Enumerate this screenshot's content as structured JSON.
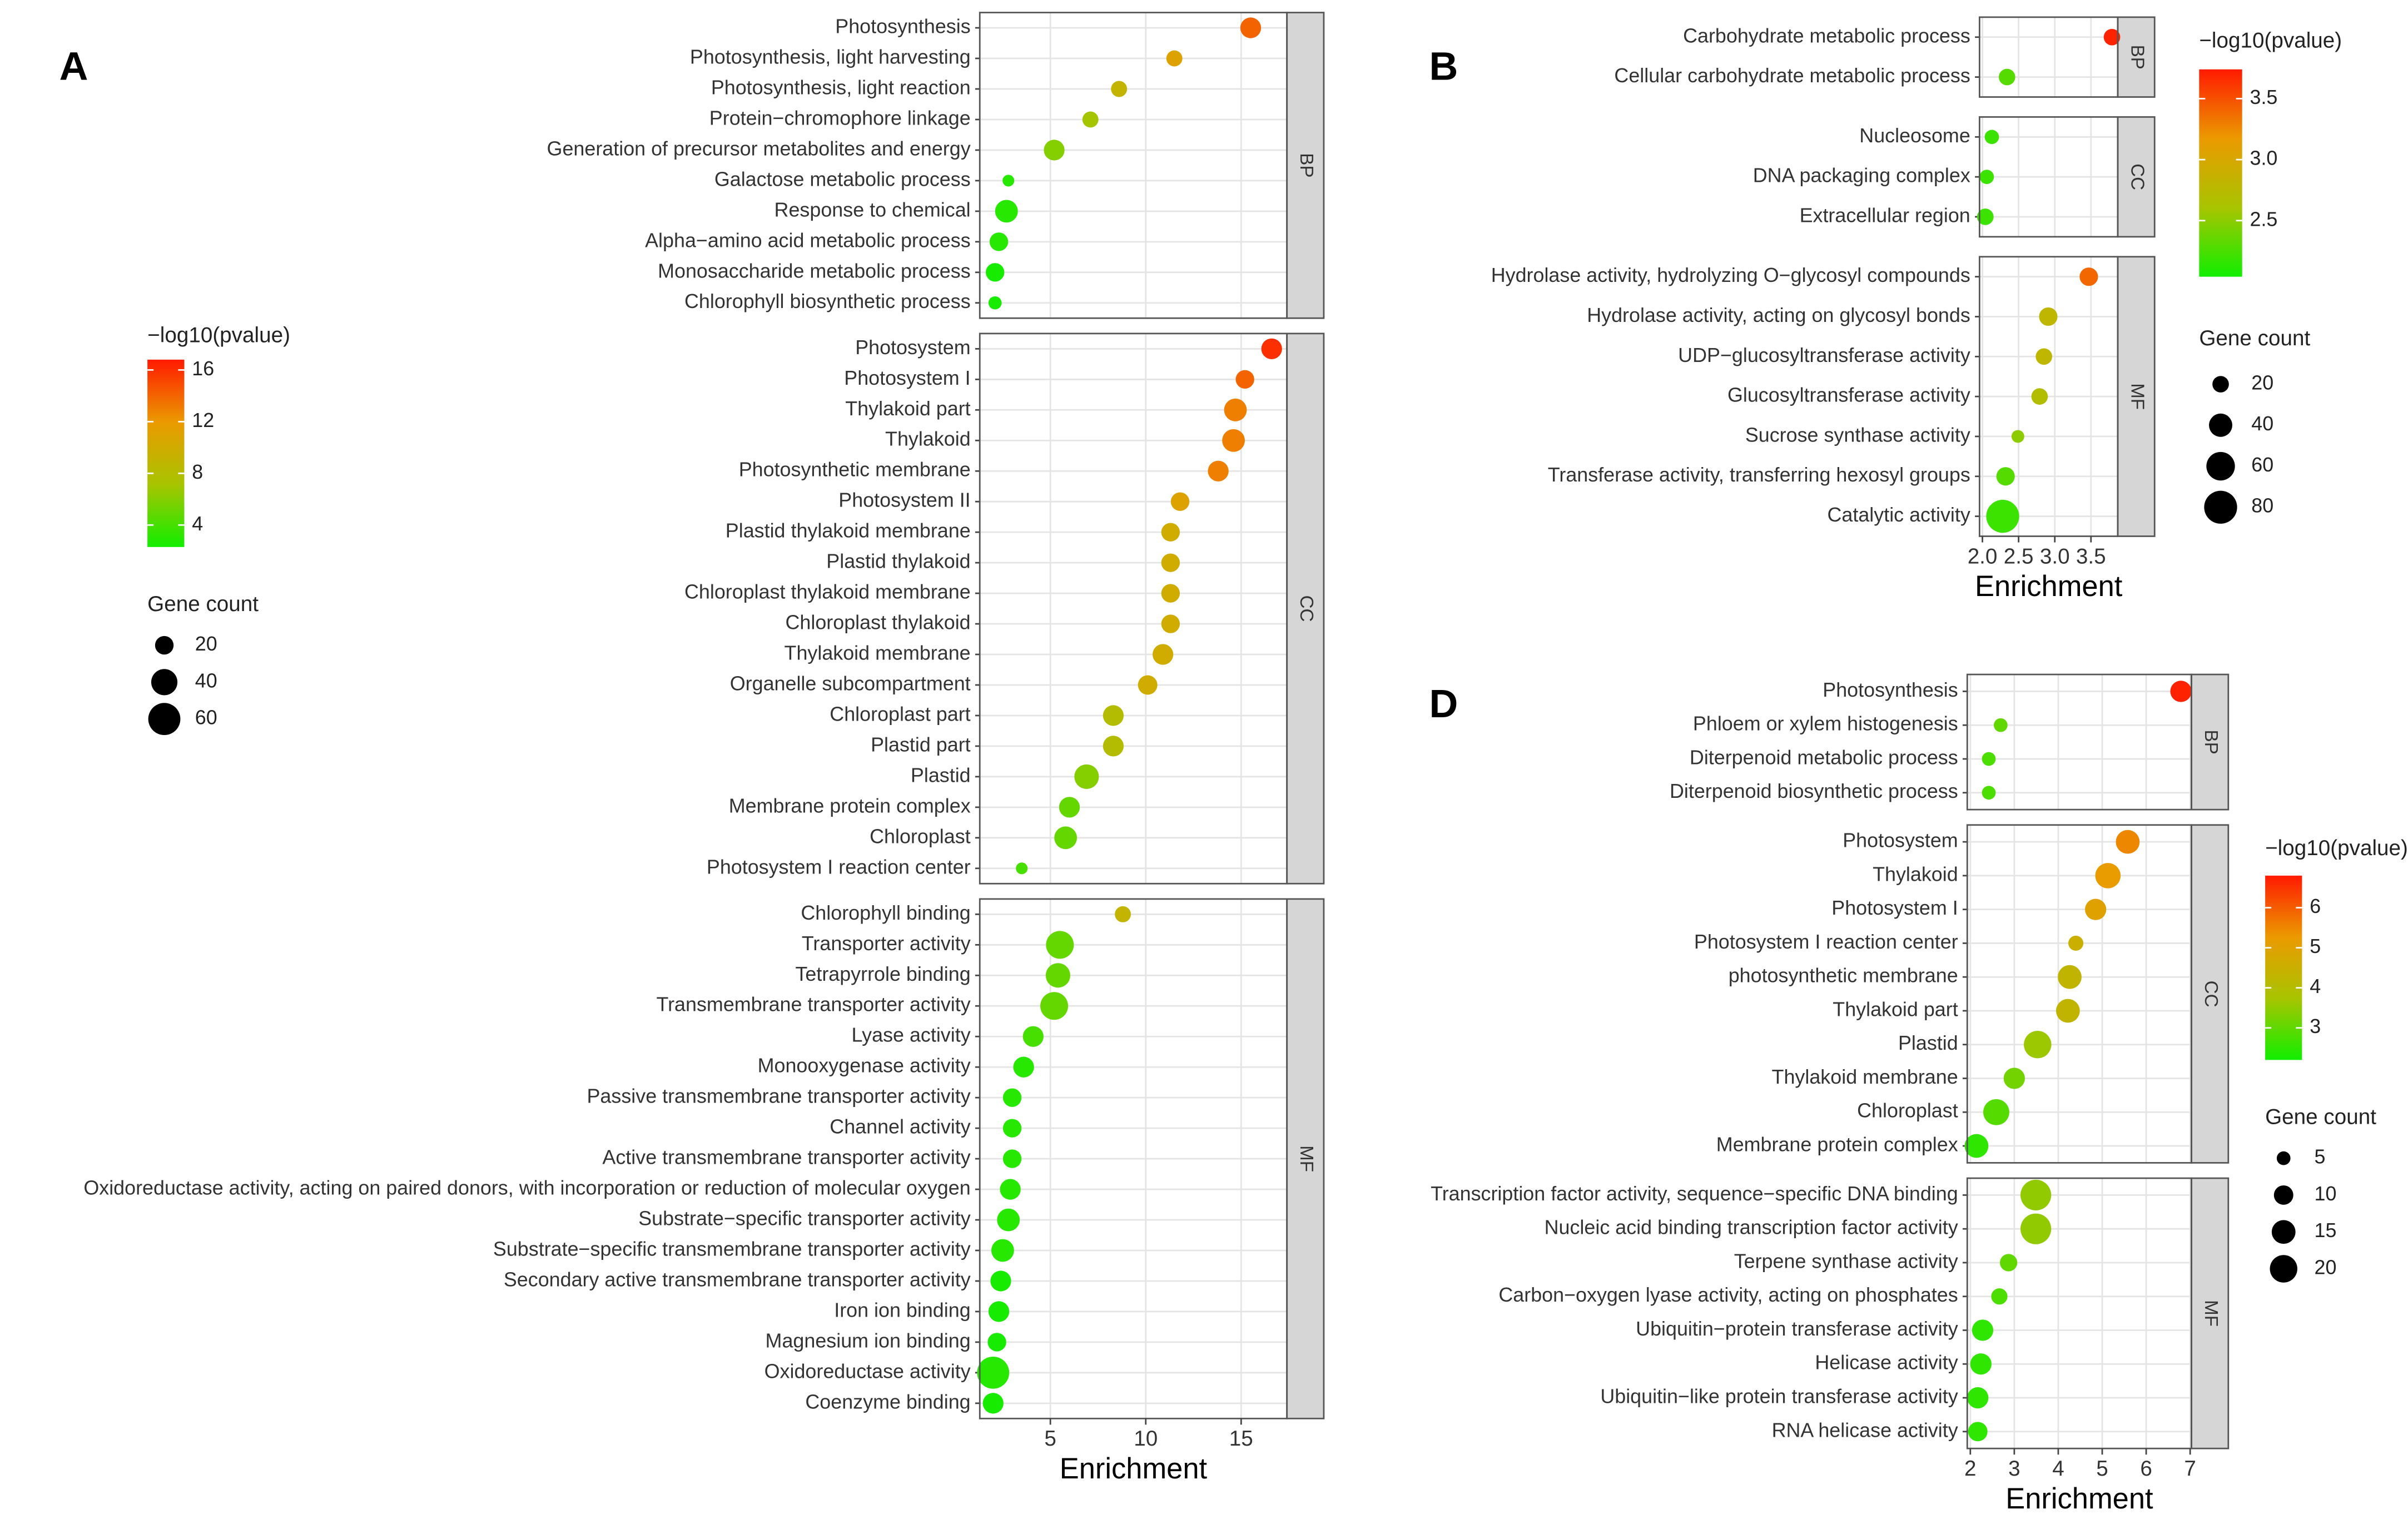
{
  "chart_data": [
    {
      "type": "dot",
      "panel": "A",
      "xlabel": "Enrichment",
      "xlim": [
        1.3,
        17.4
      ],
      "xticks": [
        5,
        10,
        15
      ],
      "color_title": "−log10(pvalue)",
      "clim": [
        2.3,
        16.8
      ],
      "cticks": [
        4,
        8,
        12,
        16
      ],
      "colorscale": [
        "#11ee00",
        "#a8c400",
        "#eb9a00",
        "#ff1a00"
      ],
      "size_title": "Gene count",
      "size_ticks": [
        20,
        40,
        60
      ],
      "facets": [
        {
          "name": "BP",
          "categories": [
            "Photosynthesis",
            "Photosynthesis, light harvesting",
            "Photosynthesis, light reaction",
            "Protein−chromophore linkage",
            "Generation of precursor metabolites and energy",
            "Galactose metabolic process",
            "Response to chemical",
            "Alpha−amino acid metabolic process",
            "Monosaccharide metabolic process",
            "Chlorophyll biosynthetic process"
          ],
          "values": [
            15.5,
            11.5,
            8.6,
            7.1,
            5.2,
            2.8,
            2.7,
            2.3,
            2.1,
            2.1
          ],
          "pvalues": [
            14,
            11,
            9,
            7,
            6,
            3,
            3,
            3,
            2.5,
            2.5
          ],
          "counts": [
            25,
            15,
            15,
            15,
            25,
            8,
            30,
            20,
            20,
            10
          ]
        },
        {
          "name": "CC",
          "categories": [
            "Photosystem",
            "Photosystem I",
            "Thylakoid part",
            "Thylakoid",
            "Photosynthetic membrane",
            "Photosystem II",
            "Plastid thylakoid membrane",
            "Plastid thylakoid",
            "Chloroplast thylakoid membrane",
            "Chloroplast thylakoid",
            "Thylakoid membrane",
            "Organelle subcompartment",
            "Chloroplast part",
            "Plastid part",
            "Plastid",
            "Membrane protein complex",
            "Chloroplast",
            "Photosystem I reaction center"
          ],
          "values": [
            16.6,
            15.2,
            14.7,
            14.6,
            13.8,
            11.8,
            11.3,
            11.3,
            11.3,
            11.3,
            10.9,
            10.1,
            8.3,
            8.3,
            6.9,
            6.0,
            5.8,
            3.5
          ],
          "pvalues": [
            16,
            14,
            13,
            13,
            13,
            11,
            10,
            10,
            10,
            10,
            10,
            10,
            8,
            8,
            6,
            5,
            5,
            4
          ],
          "counts": [
            25,
            20,
            30,
            30,
            25,
            20,
            20,
            20,
            20,
            20,
            25,
            22,
            25,
            25,
            35,
            25,
            30,
            8
          ]
        },
        {
          "name": "MF",
          "categories": [
            "Chlorophyll binding",
            "Transporter activity",
            "Tetrapyrrole binding",
            "Transmembrane transporter activity",
            "Lyase activity",
            "Monooxygenase activity",
            "Passive transmembrane transporter activity",
            "Channel activity",
            "Active transmembrane transporter activity",
            "Oxidoreductase activity, acting on paired donors, with incorporation or reduction of molecular oxygen",
            "Substrate−specific transporter activity",
            "Substrate−specific transmembrane transporter activity",
            "Secondary active transmembrane transporter activity",
            "Iron ion binding",
            "Magnesium ion binding",
            "Oxidoreductase activity",
            "Coenzyme binding"
          ],
          "values": [
            8.8,
            5.5,
            5.4,
            5.2,
            4.1,
            3.6,
            3.0,
            3.0,
            3.0,
            2.9,
            2.8,
            2.5,
            2.4,
            2.3,
            2.2,
            2.0,
            2.0
          ],
          "pvalues": [
            9,
            5,
            5,
            5,
            4,
            3,
            3,
            3,
            3,
            3,
            3,
            3,
            2.5,
            2.5,
            2.5,
            3,
            2.5
          ],
          "counts": [
            15,
            45,
            35,
            45,
            25,
            25,
            20,
            20,
            20,
            25,
            30,
            30,
            25,
            25,
            20,
            60,
            25
          ]
        }
      ]
    },
    {
      "type": "dot",
      "panel": "B",
      "xlabel": "Enrichment",
      "xlim": [
        1.96,
        3.87
      ],
      "xticks": [
        {
          "value": 2,
          "label": "2.0"
        },
        2.5,
        {
          "value": 3,
          "label": "3.0"
        },
        3.5
      ],
      "color_title": "−log10(pvalue)",
      "clim": [
        2.04,
        3.74
      ],
      "cticks": [
        2.5,
        {
          "value": 3,
          "label": "3.0"
        },
        3.5
      ],
      "colorscale": [
        "#11ee00",
        "#a8c400",
        "#eb9a00",
        "#ff1a00"
      ],
      "size_title": "Gene count",
      "size_ticks": [
        20,
        40,
        60,
        80
      ],
      "facets": [
        {
          "name": "BP",
          "categories": [
            "Carbohydrate metabolic process",
            "Cellular carbohydrate metabolic process"
          ],
          "values": [
            3.79,
            2.34
          ],
          "pvalues": [
            3.7,
            2.3
          ],
          "counts": [
            20,
            20
          ]
        },
        {
          "name": "CC",
          "categories": [
            "Nucleosome",
            "DNA packaging complex",
            "Extracellular region"
          ],
          "values": [
            2.13,
            2.06,
            2.04
          ],
          "pvalues": [
            2.2,
            2.2,
            2.2
          ],
          "counts": [
            15,
            15,
            20
          ]
        },
        {
          "name": "MF",
          "categories": [
            "Hydrolase activity, hydrolyzing O−glycosyl compounds",
            "Hydrolase activity, acting on glycosyl bonds",
            "UDP−glucosyltransferase activity",
            "Glucosyltransferase activity",
            "Sucrose synthase activity",
            "Transferase activity, transferring hexosyl groups",
            "Catalytic activity"
          ],
          "values": [
            3.47,
            2.91,
            2.85,
            2.79,
            2.49,
            2.32,
            2.28
          ],
          "pvalues": [
            3.4,
            2.8,
            2.8,
            2.7,
            2.5,
            2.3,
            2.2
          ],
          "counts": [
            25,
            25,
            20,
            20,
            12,
            25,
            80
          ]
        }
      ]
    },
    {
      "type": "dot",
      "panel": "D",
      "xlabel": "Enrichment",
      "xlim": [
        1.93,
        7.03
      ],
      "xticks": [
        2,
        3,
        4,
        5,
        6,
        7
      ],
      "color_title": "−log10(pvalue)",
      "clim": [
        2.2,
        6.8
      ],
      "cticks": [
        3,
        4,
        5,
        6
      ],
      "colorscale": [
        "#11ee00",
        "#a8c400",
        "#eb9a00",
        "#ff1a00"
      ],
      "size_title": "Gene count",
      "size_ticks": [
        5,
        10,
        15,
        20
      ],
      "facets": [
        {
          "name": "BP",
          "categories": [
            "Photosynthesis",
            "Phloem or xylem histogenesis",
            "Diterpenoid metabolic process",
            "Diterpenoid biosynthetic process"
          ],
          "values": [
            6.79,
            2.69,
            2.42,
            2.42
          ],
          "pvalues": [
            6.7,
            3,
            2.8,
            2.8
          ],
          "counts": [
            12,
            5,
            5,
            5
          ]
        },
        {
          "name": "CC",
          "categories": [
            "Photosystem",
            "Thylakoid",
            "Photosystem I",
            "Photosystem I reaction center",
            "photosynthetic membrane",
            "Thylakoid part",
            "Plastid",
            "Thylakoid membrane",
            "Chloroplast",
            "Membrane protein complex"
          ],
          "values": [
            5.58,
            5.13,
            4.85,
            4.4,
            4.26,
            4.22,
            3.53,
            3.0,
            2.59,
            2.14
          ],
          "pvalues": [
            5.5,
            5.2,
            5,
            4.5,
            4.3,
            4.3,
            3.6,
            3.2,
            2.9,
            2.5
          ],
          "counts": [
            15,
            17,
            12,
            6,
            15,
            15,
            20,
            12,
            18,
            15
          ]
        },
        {
          "name": "MF",
          "categories": [
            "Transcription factor activity, sequence−specific DNA binding",
            "Nucleic acid binding transcription factor activity",
            "Terpene synthase activity",
            "Carbon−oxygen lyase activity, acting on phosphates",
            "Ubiquitin−protein transferase activity",
            "Helicase activity",
            "Ubiquitin−like protein transferase activity",
            "RNA helicase activity"
          ],
          "values": [
            3.49,
            3.49,
            2.87,
            2.66,
            2.28,
            2.24,
            2.17,
            2.17
          ],
          "pvalues": [
            3.5,
            3.5,
            3,
            2.8,
            2.5,
            2.5,
            2.5,
            2.5
          ],
          "counts": [
            25,
            25,
            8,
            7,
            12,
            12,
            12,
            10
          ]
        }
      ]
    }
  ]
}
